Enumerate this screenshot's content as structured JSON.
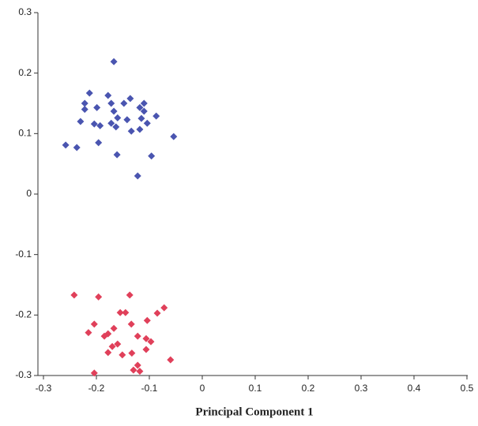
{
  "chart_data": {
    "type": "scatter",
    "x_label": "Principal Component 1",
    "xlim": [
      -0.3,
      0.5
    ],
    "xticks": [
      -0.3,
      -0.2,
      -0.1,
      0,
      0.1,
      0.2,
      0.3,
      0.4,
      0.5
    ],
    "ylim": [
      -0.3,
      0.3
    ],
    "yticks": [
      -0.3,
      -0.2,
      -0.1,
      0,
      0.1,
      0.2,
      0.3
    ],
    "grid": false,
    "series": [
      {
        "color": "#4a55b0",
        "x": [
          -0.167,
          -0.258,
          -0.237,
          -0.222,
          -0.222,
          -0.213,
          -0.23,
          -0.204,
          -0.196,
          -0.193,
          -0.199,
          -0.178,
          -0.172,
          -0.172,
          -0.167,
          -0.163,
          -0.16,
          -0.161,
          -0.148,
          -0.142,
          -0.136,
          -0.134,
          -0.122,
          -0.118,
          -0.115,
          -0.11,
          -0.104,
          -0.096,
          -0.087,
          -0.054,
          -0.118,
          -0.11
        ],
        "values": [
          0.219,
          0.081,
          0.077,
          0.15,
          0.14,
          0.167,
          0.12,
          0.116,
          0.085,
          0.113,
          0.143,
          0.163,
          0.15,
          0.117,
          0.137,
          0.111,
          0.126,
          0.065,
          0.15,
          0.123,
          0.158,
          0.104,
          0.03,
          0.143,
          0.125,
          0.15,
          0.117,
          0.063,
          0.129,
          0.095,
          0.107,
          0.137
        ]
      },
      {
        "color": "#e0405a",
        "x": [
          -0.242,
          -0.196,
          -0.137,
          -0.072,
          -0.085,
          -0.155,
          -0.145,
          -0.204,
          -0.104,
          -0.134,
          -0.167,
          -0.178,
          -0.185,
          -0.215,
          -0.122,
          -0.106,
          -0.097,
          -0.106,
          -0.17,
          -0.16,
          -0.151,
          -0.133,
          -0.178,
          -0.06,
          -0.122,
          -0.13,
          -0.118,
          -0.204
        ],
        "values": [
          -0.167,
          -0.17,
          -0.167,
          -0.188,
          -0.197,
          -0.196,
          -0.196,
          -0.215,
          -0.209,
          -0.215,
          -0.222,
          -0.231,
          -0.235,
          -0.229,
          -0.235,
          -0.239,
          -0.244,
          -0.257,
          -0.252,
          -0.248,
          -0.266,
          -0.263,
          -0.262,
          -0.274,
          -0.283,
          -0.291,
          -0.293,
          -0.296
        ]
      }
    ]
  }
}
